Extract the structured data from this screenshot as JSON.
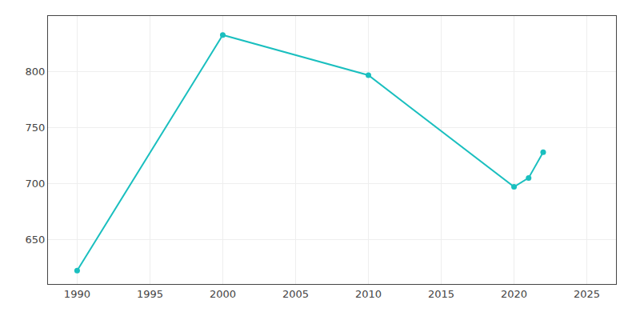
{
  "chart_data": {
    "type": "line",
    "x": [
      1990,
      2000,
      2010,
      2020,
      2021,
      2022
    ],
    "values": [
      622,
      833,
      797,
      697,
      705,
      728
    ],
    "color": "#1abfbf",
    "marker": "circle",
    "xlim": [
      1988,
      2027
    ],
    "ylim": [
      610,
      850
    ],
    "xticks": [
      1990,
      1995,
      2000,
      2005,
      2010,
      2015,
      2020,
      2025
    ],
    "yticks": [
      650,
      700,
      750,
      800
    ],
    "grid": true
  }
}
